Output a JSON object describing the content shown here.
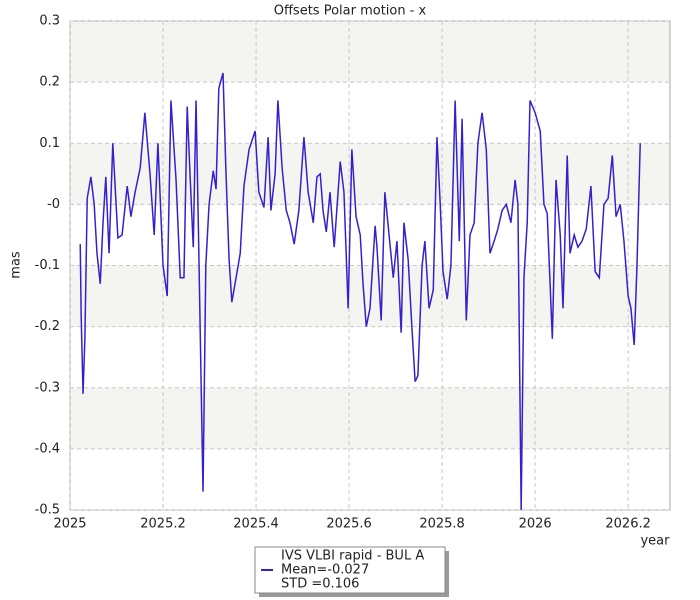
{
  "chart_data": {
    "type": "line",
    "title": "Offsets Polar motion - x",
    "x_label": "year",
    "y_label": "mas",
    "xlim": [
      2025,
      2026.29
    ],
    "ylim": [
      -0.5,
      0.3
    ],
    "xticks": [
      2025,
      2025.2,
      2025.4,
      2025.6,
      2025.8,
      2026,
      2026.2
    ],
    "yticks": [
      -0.5,
      -0.4,
      -0.3,
      -0.2,
      -0.1,
      {
        "value": 0,
        "label": "-0"
      },
      0.1,
      0.2,
      0.3
    ],
    "grid": true,
    "legend_notes": [
      "Mean=-0.027",
      "STD =0.106"
    ],
    "series": [
      {
        "name": "IVS VLBI rapid - BUL A",
        "color": "#3322cc",
        "x": [
          2025.022,
          2025.024,
          2025.028,
          2025.032,
          2025.037,
          2025.045,
          2025.052,
          2025.058,
          2025.065,
          2025.071,
          2025.077,
          2025.084,
          2025.092,
          2025.097,
          2025.103,
          2025.112,
          2025.123,
          2025.131,
          2025.14,
          2025.151,
          2025.161,
          2025.172,
          2025.181,
          2025.189,
          2025.2,
          2025.209,
          2025.217,
          2025.228,
          2025.237,
          2025.245,
          2025.252,
          2025.258,
          2025.265,
          2025.271,
          2025.277,
          2025.286,
          2025.292,
          2025.299,
          2025.308,
          2025.314,
          2025.32,
          2025.329,
          2025.335,
          2025.342,
          2025.348,
          2025.357,
          2025.366,
          2025.374,
          2025.385,
          2025.398,
          2025.406,
          2025.417,
          2025.426,
          2025.432,
          2025.441,
          2025.447,
          2025.456,
          2025.465,
          2025.473,
          2025.482,
          2025.492,
          2025.503,
          2025.512,
          2025.523,
          2025.531,
          2025.538,
          2025.544,
          2025.551,
          2025.559,
          2025.568,
          2025.581,
          2025.589,
          2025.598,
          2025.606,
          2025.615,
          2025.624,
          2025.63,
          2025.637,
          2025.645,
          2025.656,
          2025.66,
          2025.669,
          2025.677,
          2025.686,
          2025.695,
          2025.703,
          2025.712,
          2025.718,
          2025.727,
          2025.735,
          2025.742,
          2025.748,
          2025.757,
          2025.763,
          2025.772,
          2025.781,
          2025.789,
          2025.796,
          2025.802,
          2025.811,
          2025.819,
          2025.828,
          2025.837,
          2025.843,
          2025.852,
          2025.86,
          2025.869,
          2025.877,
          2025.886,
          2025.895,
          2025.903,
          2025.912,
          2025.92,
          2025.929,
          2025.938,
          2025.948,
          2025.957,
          2025.963,
          2025.97,
          2025.976,
          2025.983,
          2025.989,
          2026.0,
          2026.011,
          2026.019,
          2026.026,
          2026.037,
          2026.045,
          2026.054,
          2026.06,
          2026.069,
          2026.075,
          2026.084,
          2026.092,
          2026.101,
          2026.11,
          2026.12,
          2026.129,
          2026.138,
          2026.148,
          2026.157,
          2026.166,
          2026.174,
          2026.183,
          2026.191,
          2026.2,
          2026.206,
          2026.213,
          2026.219,
          2026.226
        ],
        "values": [
          -0.065,
          -0.18,
          -0.31,
          -0.22,
          0.01,
          0.045,
          0.0,
          -0.08,
          -0.13,
          -0.03,
          0.045,
          -0.08,
          0.1,
          0.03,
          -0.055,
          -0.05,
          0.03,
          -0.02,
          0.02,
          0.06,
          0.15,
          0.05,
          -0.05,
          0.1,
          -0.1,
          -0.15,
          0.17,
          0.04,
          -0.12,
          -0.12,
          0.16,
          0.05,
          -0.07,
          0.17,
          -0.08,
          -0.47,
          -0.1,
          0.0,
          0.055,
          0.025,
          0.19,
          0.215,
          0.06,
          -0.09,
          -0.16,
          -0.12,
          -0.08,
          0.03,
          0.09,
          0.12,
          0.02,
          -0.005,
          0.11,
          -0.01,
          0.05,
          0.17,
          0.06,
          -0.01,
          -0.03,
          -0.065,
          -0.01,
          0.11,
          0.02,
          -0.03,
          0.045,
          0.05,
          -0.01,
          -0.045,
          0.02,
          -0.07,
          0.07,
          0.02,
          -0.17,
          0.09,
          -0.02,
          -0.05,
          -0.13,
          -0.2,
          -0.17,
          -0.035,
          -0.07,
          -0.19,
          0.02,
          -0.05,
          -0.12,
          -0.06,
          -0.21,
          -0.03,
          -0.09,
          -0.2,
          -0.29,
          -0.28,
          -0.1,
          -0.06,
          -0.17,
          -0.14,
          0.11,
          0.0,
          -0.11,
          -0.155,
          -0.1,
          0.17,
          -0.06,
          0.14,
          -0.19,
          -0.05,
          -0.03,
          0.1,
          0.15,
          0.09,
          -0.08,
          -0.06,
          -0.04,
          -0.01,
          0.0,
          -0.03,
          0.04,
          0.0,
          -0.5,
          -0.12,
          -0.03,
          0.17,
          0.15,
          0.12,
          0.0,
          -0.015,
          -0.22,
          0.04,
          -0.05,
          -0.17,
          0.08,
          -0.08,
          -0.05,
          -0.07,
          -0.06,
          -0.04,
          0.03,
          -0.11,
          -0.12,
          0.0,
          0.01,
          0.08,
          -0.02,
          0.0,
          -0.06,
          -0.15,
          -0.17,
          -0.23,
          -0.1,
          0.1
        ]
      }
    ]
  }
}
